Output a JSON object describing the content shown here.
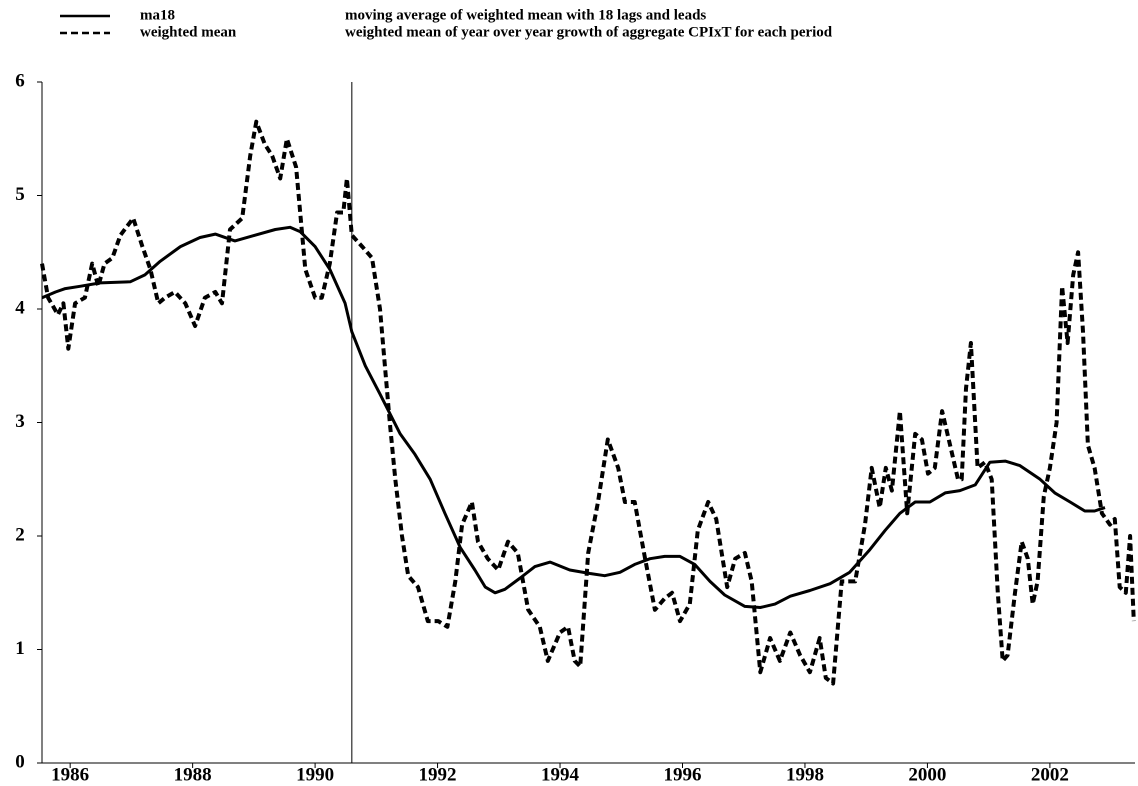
{
  "chart_data": {
    "type": "line",
    "xlim": [
      1985.54,
      2003.39
    ],
    "xticks": [
      1986,
      1988,
      1990,
      1992,
      1994,
      1996,
      1998,
      2000,
      2002
    ],
    "ylim": [
      0,
      6
    ],
    "yticks": [
      0,
      1,
      2,
      3,
      4,
      5,
      6
    ],
    "vline": 1990.6,
    "series": [
      {
        "name": "ma18",
        "description": "moving average of weighted mean with 18 lags and leads",
        "color": "#000000",
        "dash": "solid",
        "x": [
          1985.54,
          1985.76,
          1985.92,
          1986.16,
          1986.49,
          1986.98,
          1987.22,
          1987.47,
          1987.8,
          1988.12,
          1988.37,
          1988.69,
          1989.02,
          1989.35,
          1989.59,
          1989.76,
          1990.0,
          1990.24,
          1990.49,
          1990.6,
          1990.82,
          1991.06,
          1991.39,
          1991.63,
          1991.88,
          1992.12,
          1992.37,
          1992.61,
          1992.78,
          1992.94,
          1993.1,
          1993.35,
          1993.59,
          1993.84,
          1994.16,
          1994.49,
          1994.73,
          1994.98,
          1995.22,
          1995.47,
          1995.71,
          1995.96,
          1996.2,
          1996.45,
          1996.69,
          1997.02,
          1997.27,
          1997.51,
          1997.76,
          1998.08,
          1998.41,
          1998.73,
          1999.06,
          1999.31,
          1999.55,
          1999.8,
          2000.04,
          2000.29,
          2000.53,
          2000.78,
          2001.02,
          2001.27,
          2001.51,
          2001.84,
          2002.08,
          2002.33,
          2002.57,
          2002.73,
          2002.9
        ],
        "values": [
          4.1,
          4.15,
          4.18,
          4.2,
          4.23,
          4.24,
          4.3,
          4.42,
          4.55,
          4.63,
          4.66,
          4.6,
          4.65,
          4.7,
          4.72,
          4.68,
          4.55,
          4.35,
          4.05,
          3.8,
          3.5,
          3.25,
          2.9,
          2.72,
          2.5,
          2.2,
          1.9,
          1.7,
          1.55,
          1.5,
          1.53,
          1.63,
          1.73,
          1.77,
          1.7,
          1.67,
          1.65,
          1.68,
          1.75,
          1.8,
          1.82,
          1.82,
          1.75,
          1.6,
          1.48,
          1.38,
          1.37,
          1.4,
          1.47,
          1.52,
          1.58,
          1.68,
          1.88,
          2.05,
          2.2,
          2.3,
          2.3,
          2.38,
          2.4,
          2.45,
          2.65,
          2.66,
          2.62,
          2.5,
          2.38,
          2.3,
          2.22,
          2.22,
          2.25
        ]
      },
      {
        "name": "weighted mean",
        "description": "weighted mean of year over year growth of aggregate CPIxT for each period",
        "color": "#000000",
        "dash": "dashed",
        "x": [
          1985.54,
          1985.64,
          1985.8,
          1985.89,
          1985.97,
          1986.08,
          1986.24,
          1986.36,
          1986.46,
          1986.56,
          1986.69,
          1986.82,
          1987.03,
          1987.18,
          1987.31,
          1987.44,
          1987.55,
          1987.71,
          1987.88,
          1988.04,
          1988.2,
          1988.37,
          1988.48,
          1988.61,
          1988.81,
          1988.94,
          1989.04,
          1989.18,
          1989.3,
          1989.43,
          1989.54,
          1989.69,
          1989.84,
          1990.0,
          1990.11,
          1990.24,
          1990.36,
          1990.46,
          1990.52,
          1990.6,
          1990.77,
          1990.93,
          1991.06,
          1991.22,
          1991.31,
          1991.42,
          1991.52,
          1991.68,
          1991.84,
          1992.01,
          1992.16,
          1992.29,
          1992.4,
          1992.56,
          1992.66,
          1992.82,
          1992.99,
          1993.15,
          1993.31,
          1993.48,
          1993.67,
          1993.8,
          1994.0,
          1994.13,
          1994.24,
          1994.33,
          1994.46,
          1994.62,
          1994.78,
          1994.95,
          1995.06,
          1995.22,
          1995.39,
          1995.55,
          1995.71,
          1995.83,
          1995.96,
          1996.12,
          1996.25,
          1996.42,
          1996.55,
          1996.73,
          1996.86,
          1997.02,
          1997.13,
          1997.27,
          1997.43,
          1997.59,
          1997.76,
          1997.92,
          1998.08,
          1998.24,
          1998.34,
          1998.46,
          1998.6,
          1998.82,
          1998.98,
          1999.09,
          1999.22,
          1999.32,
          1999.42,
          1999.55,
          1999.67,
          1999.8,
          1999.91,
          2000.01,
          2000.12,
          2000.24,
          2000.37,
          2000.5,
          2000.56,
          2000.63,
          2000.71,
          2000.82,
          2000.94,
          2001.05,
          2001.15,
          2001.23,
          2001.31,
          2001.43,
          2001.54,
          2001.64,
          2001.72,
          2001.8,
          2001.9,
          2002.0,
          2002.11,
          2002.2,
          2002.29,
          2002.38,
          2002.46,
          2002.54,
          2002.62,
          2002.73,
          2002.85,
          2002.98,
          2003.06,
          2003.14,
          2003.24,
          2003.31,
          2003.37
        ],
        "values": [
          4.4,
          4.1,
          3.95,
          4.05,
          3.65,
          4.05,
          4.1,
          4.4,
          4.2,
          4.4,
          4.45,
          4.65,
          4.8,
          4.55,
          4.35,
          4.05,
          4.1,
          4.15,
          4.05,
          3.85,
          4.1,
          4.15,
          4.05,
          4.7,
          4.8,
          5.35,
          5.65,
          5.45,
          5.35,
          5.15,
          5.5,
          5.25,
          4.35,
          4.1,
          4.1,
          4.4,
          4.85,
          4.85,
          5.15,
          4.65,
          4.55,
          4.45,
          4.0,
          3.0,
          2.5,
          2.0,
          1.65,
          1.55,
          1.25,
          1.25,
          1.2,
          1.6,
          2.1,
          2.3,
          1.95,
          1.8,
          1.7,
          1.95,
          1.85,
          1.35,
          1.2,
          0.9,
          1.15,
          1.2,
          0.9,
          0.85,
          1.85,
          2.3,
          2.85,
          2.6,
          2.3,
          2.3,
          1.8,
          1.35,
          1.45,
          1.5,
          1.25,
          1.4,
          2.05,
          2.3,
          2.15,
          1.55,
          1.8,
          1.85,
          1.6,
          0.8,
          1.1,
          0.9,
          1.15,
          0.95,
          0.8,
          1.1,
          0.75,
          0.7,
          1.6,
          1.6,
          2.1,
          2.6,
          2.25,
          2.6,
          2.4,
          3.1,
          2.2,
          2.9,
          2.85,
          2.55,
          2.6,
          3.1,
          2.8,
          2.5,
          2.5,
          3.3,
          3.7,
          2.6,
          2.65,
          2.5,
          1.5,
          0.9,
          0.95,
          1.5,
          1.95,
          1.8,
          1.4,
          1.6,
          2.35,
          2.6,
          3.0,
          4.2,
          3.7,
          4.3,
          4.5,
          3.8,
          2.8,
          2.6,
          2.2,
          2.1,
          2.15,
          1.55,
          1.5,
          2.0,
          1.25
        ]
      }
    ]
  }
}
